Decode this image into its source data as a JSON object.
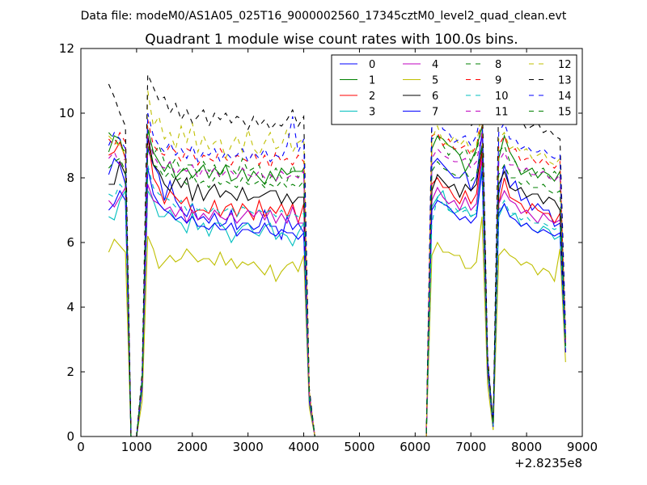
{
  "chart_data": {
    "type": "line",
    "suptitle": "Data file: modeM0/AS1A05_025T16_9000002560_17345cztM0_level2_quad_clean.evt",
    "title": "Quadrant 1 module wise count rates with 100.0s bins.",
    "xlabel": "",
    "ylabel": "",
    "offset_label": "+2.8235e8",
    "xlim": [
      0,
      9000
    ],
    "ylim": [
      0,
      12
    ],
    "xticks": [
      0,
      1000,
      2000,
      3000,
      4000,
      5000,
      6000,
      7000,
      8000,
      9000
    ],
    "yticks": [
      0,
      2,
      4,
      6,
      8,
      10,
      12
    ],
    "grid": false,
    "legend_position": "top-right",
    "legend_columns": 4,
    "x": [
      500,
      600,
      700,
      800,
      900,
      1000,
      1100,
      1200,
      1300,
      1400,
      1500,
      1600,
      1700,
      1800,
      1900,
      2000,
      2100,
      2200,
      2300,
      2400,
      2500,
      2600,
      2700,
      2800,
      2900,
      3000,
      3100,
      3200,
      3300,
      3400,
      3500,
      3600,
      3700,
      3800,
      3900,
      4000,
      4100,
      4200,
      4300,
      4400,
      6200,
      6300,
      6400,
      6500,
      6600,
      6700,
      6800,
      6900,
      7000,
      7100,
      7200,
      7300,
      7400,
      7500,
      7600,
      7700,
      7800,
      7900,
      8000,
      8100,
      8200,
      8300,
      8400,
      8500,
      8600,
      8700
    ],
    "series": [
      {
        "name": "0",
        "color": "#0000ff",
        "dash": "solid",
        "values": [
          8.1,
          8.6,
          8.4,
          7.8,
          0,
          0,
          1.6,
          8.9,
          8.4,
          8.1,
          7.3,
          7.9,
          7.3,
          7.0,
          6.8,
          7.2,
          6.7,
          6.8,
          6.6,
          6.9,
          6.5,
          6.6,
          7.0,
          6.4,
          6.6,
          6.6,
          6.4,
          6.5,
          7.0,
          6.5,
          6.5,
          6.1,
          6.8,
          6.4,
          6.6,
          6.3,
          1.2,
          0,
          0,
          0,
          0,
          8.4,
          8.6,
          8.4,
          8.2,
          8.0,
          8.0,
          8.2,
          7.6,
          8.0,
          9.4,
          2.2,
          0.4,
          7.5,
          8.4,
          7.7,
          7.9,
          7.3,
          7.4,
          7.0,
          7.2,
          7.0,
          7.0,
          6.5,
          6.6,
          2.8
        ]
      },
      {
        "name": "1",
        "color": "#008000",
        "dash": "solid",
        "values": [
          8.8,
          9.3,
          9.2,
          8.6,
          0,
          0,
          1.7,
          9.5,
          8.8,
          8.5,
          8.2,
          8.5,
          8.0,
          8.2,
          8.3,
          8.0,
          8.2,
          8.4,
          8.0,
          8.3,
          8.1,
          8.4,
          7.9,
          8.0,
          8.3,
          7.9,
          8.2,
          8.0,
          7.8,
          8.2,
          7.9,
          8.3,
          8.1,
          8.2,
          8.2,
          8.2,
          1.3,
          0,
          0,
          0,
          0,
          8.9,
          9.3,
          9.2,
          9.0,
          8.9,
          8.7,
          8.2,
          8.5,
          8.9,
          9.6,
          2.2,
          0.4,
          8.6,
          9.3,
          8.8,
          8.5,
          8.1,
          8.2,
          8.3,
          8.0,
          8.2,
          8.1,
          7.9,
          8.2,
          3.0
        ]
      },
      {
        "name": "2",
        "color": "#ff0000",
        "dash": "solid",
        "values": [
          8.7,
          8.8,
          9.1,
          8.6,
          0,
          0,
          1.6,
          9.3,
          8.0,
          7.7,
          7.2,
          7.6,
          7.4,
          7.2,
          7.4,
          6.9,
          7.0,
          7.0,
          6.9,
          7.3,
          6.8,
          7.1,
          7.2,
          6.8,
          7.2,
          7.0,
          6.7,
          7.3,
          6.8,
          7.1,
          6.9,
          7.2,
          6.8,
          7.2,
          6.6,
          7.2,
          1.3,
          0,
          0,
          0,
          0,
          7.8,
          8.0,
          7.7,
          7.7,
          7.4,
          7.2,
          7.6,
          7.2,
          7.5,
          8.8,
          2.2,
          0.4,
          7.2,
          8.0,
          7.4,
          7.3,
          7.2,
          6.9,
          7.2,
          7.0,
          6.9,
          6.9,
          6.6,
          6.9,
          2.6
        ]
      },
      {
        "name": "3",
        "color": "#00bfbf",
        "dash": "solid",
        "values": [
          6.8,
          6.7,
          7.3,
          7.6,
          0,
          0,
          1.5,
          7.6,
          7.3,
          6.8,
          6.8,
          7.0,
          6.7,
          6.6,
          6.3,
          6.9,
          6.4,
          6.6,
          6.2,
          6.6,
          6.6,
          6.4,
          6.0,
          6.3,
          6.5,
          6.6,
          6.3,
          6.2,
          6.5,
          6.6,
          6.1,
          6.3,
          6.2,
          5.9,
          6.3,
          6.6,
          1.1,
          0,
          0,
          0,
          0,
          7.1,
          7.4,
          7.6,
          7.0,
          6.9,
          7.0,
          7.1,
          6.8,
          6.9,
          8.5,
          2.0,
          0.3,
          6.8,
          7.2,
          6.8,
          6.9,
          6.5,
          6.6,
          6.4,
          6.3,
          6.5,
          6.4,
          6.1,
          6.2,
          2.6
        ]
      },
      {
        "name": "4",
        "color": "#bf00bf",
        "dash": "solid",
        "values": [
          7.3,
          7.1,
          7.4,
          7.7,
          0,
          0,
          1.5,
          7.8,
          7.3,
          7.2,
          7.0,
          7.1,
          6.8,
          7.1,
          6.6,
          7.0,
          6.7,
          6.9,
          6.7,
          7.0,
          6.8,
          6.7,
          6.9,
          6.6,
          6.8,
          7.0,
          6.8,
          7.0,
          6.7,
          7.0,
          6.6,
          6.9,
          6.6,
          7.1,
          6.6,
          6.6,
          1.1,
          0,
          0,
          0,
          0,
          7.3,
          7.7,
          7.4,
          7.2,
          7.3,
          7.0,
          7.4,
          7.0,
          7.2,
          8.6,
          2.1,
          0.3,
          7.2,
          7.6,
          7.3,
          7.2,
          6.9,
          7.0,
          6.8,
          6.6,
          6.9,
          6.7,
          6.6,
          6.7,
          2.6
        ]
      },
      {
        "name": "5",
        "color": "#bfbf00",
        "dash": "solid",
        "values": [
          5.7,
          6.1,
          5.9,
          5.7,
          0,
          0,
          1.1,
          6.2,
          5.8,
          5.2,
          5.4,
          5.6,
          5.4,
          5.5,
          5.8,
          5.6,
          5.4,
          5.5,
          5.5,
          5.3,
          5.7,
          5.3,
          5.5,
          5.2,
          5.4,
          5.3,
          5.4,
          5.2,
          5.0,
          5.3,
          4.8,
          5.1,
          5.3,
          5.4,
          5.1,
          5.6,
          0.9,
          0,
          0,
          0,
          0,
          5.6,
          6.0,
          5.7,
          5.7,
          5.6,
          5.6,
          5.2,
          5.2,
          5.4,
          6.8,
          1.6,
          0.2,
          5.6,
          5.8,
          5.6,
          5.5,
          5.3,
          5.4,
          5.3,
          5.0,
          5.2,
          5.1,
          4.8,
          5.8,
          2.3
        ]
      },
      {
        "name": "6",
        "color": "#000000",
        "dash": "solid",
        "values": [
          7.8,
          7.8,
          8.5,
          8.1,
          0,
          0,
          1.6,
          9.3,
          8.4,
          8.2,
          7.8,
          7.6,
          8.0,
          7.7,
          8.0,
          7.3,
          7.8,
          7.3,
          7.6,
          7.8,
          7.4,
          7.6,
          7.5,
          7.3,
          7.7,
          7.3,
          7.4,
          7.4,
          7.5,
          7.6,
          7.6,
          7.2,
          7.5,
          7.2,
          7.4,
          7.4,
          1.3,
          0,
          0,
          0,
          0,
          7.6,
          8.1,
          7.9,
          7.7,
          7.8,
          7.4,
          7.8,
          7.6,
          7.8,
          9.0,
          2.2,
          0.4,
          7.8,
          8.2,
          7.7,
          7.6,
          7.7,
          7.4,
          7.5,
          7.5,
          7.2,
          7.4,
          7.3,
          7.0,
          2.8
        ]
      },
      {
        "name": "7",
        "color": "#0000ff",
        "dash": "solid",
        "values": [
          7.0,
          7.2,
          7.6,
          7.3,
          0,
          0,
          1.5,
          8.3,
          7.5,
          7.2,
          7.0,
          6.9,
          6.7,
          6.8,
          6.6,
          6.8,
          6.5,
          6.5,
          6.4,
          6.6,
          6.4,
          6.4,
          6.6,
          6.2,
          6.4,
          6.4,
          6.3,
          6.3,
          6.6,
          6.3,
          6.2,
          6.4,
          6.3,
          6.3,
          6.1,
          6.3,
          1.1,
          0,
          0,
          0,
          0,
          7.0,
          7.3,
          7.2,
          7.1,
          6.9,
          6.7,
          6.8,
          6.6,
          6.8,
          8.2,
          2.0,
          0.3,
          6.9,
          7.2,
          6.8,
          6.7,
          6.5,
          6.6,
          6.4,
          6.3,
          6.4,
          6.3,
          6.2,
          6.3,
          2.6
        ]
      },
      {
        "name": "8",
        "color": "#008000",
        "dash": "dashed",
        "values": [
          9.4,
          9.2,
          9.0,
          8.8,
          0,
          0,
          1.8,
          9.6,
          8.7,
          9.0,
          8.5,
          8.3,
          8.6,
          8.2,
          8.4,
          8.4,
          8.1,
          8.5,
          8.2,
          8.4,
          8.0,
          8.4,
          8.3,
          8.1,
          8.6,
          8.2,
          8.3,
          8.4,
          7.8,
          8.0,
          8.3,
          8.0,
          7.9,
          8.4,
          8.0,
          8.3,
          1.4,
          0,
          0,
          0,
          0,
          9.2,
          9.3,
          9.0,
          8.7,
          8.9,
          8.7,
          8.9,
          8.5,
          8.8,
          9.6,
          2.3,
          0.4,
          8.8,
          9.0,
          8.5,
          8.5,
          8.1,
          8.3,
          8.0,
          8.2,
          8.3,
          8.0,
          8.2,
          8.0,
          3.0
        ]
      },
      {
        "name": "9",
        "color": "#ff0000",
        "dash": "dashed",
        "values": [
          9.2,
          9.0,
          9.4,
          9.1,
          0,
          0,
          1.8,
          9.8,
          9.0,
          8.8,
          8.7,
          9.0,
          8.8,
          8.5,
          8.9,
          8.8,
          8.4,
          8.7,
          8.6,
          8.5,
          8.9,
          8.6,
          8.4,
          8.7,
          8.6,
          8.5,
          8.8,
          8.4,
          8.7,
          8.3,
          8.8,
          8.5,
          8.6,
          8.4,
          8.7,
          8.5,
          1.4,
          0,
          0,
          0,
          0,
          9.3,
          9.4,
          9.0,
          9.2,
          8.9,
          8.9,
          9.0,
          8.7,
          9.0,
          9.8,
          2.3,
          0.4,
          9.0,
          9.3,
          8.8,
          8.9,
          8.5,
          8.6,
          8.6,
          8.4,
          8.6,
          8.4,
          8.3,
          8.5,
          3.0
        ]
      },
      {
        "name": "10",
        "color": "#00bfbf",
        "dash": "dashed",
        "values": [
          7.5,
          7.4,
          7.8,
          7.6,
          0,
          0,
          1.6,
          8.4,
          7.7,
          7.5,
          7.4,
          7.3,
          7.1,
          7.3,
          7.0,
          7.2,
          7.0,
          7.1,
          6.9,
          7.1,
          6.9,
          7.0,
          7.1,
          6.8,
          7.1,
          7.0,
          6.9,
          7.0,
          6.9,
          7.0,
          6.8,
          7.0,
          6.8,
          6.9,
          6.8,
          6.9,
          1.2,
          0,
          0,
          0,
          0,
          6.6,
          7.4,
          7.2,
          7.0,
          7.1,
          6.9,
          7.0,
          6.8,
          7.0,
          8.4,
          2.1,
          0.3,
          7.0,
          7.3,
          6.9,
          6.9,
          6.7,
          6.8,
          6.6,
          6.6,
          6.6,
          6.5,
          6.4,
          6.5,
          2.7
        ]
      },
      {
        "name": "11",
        "color": "#bf00bf",
        "dash": "dashed",
        "values": [
          8.6,
          8.8,
          8.4,
          8.6,
          0,
          0,
          1.7,
          9.3,
          8.7,
          8.4,
          8.3,
          8.5,
          8.1,
          8.3,
          8.2,
          8.4,
          8.0,
          8.3,
          8.1,
          8.3,
          8.0,
          8.2,
          8.2,
          8.0,
          8.3,
          8.1,
          8.0,
          8.2,
          8.0,
          8.1,
          7.9,
          8.2,
          8.0,
          8.1,
          8.0,
          8.2,
          1.3,
          0,
          0,
          0,
          0,
          8.6,
          8.9,
          8.7,
          8.6,
          8.5,
          8.5,
          8.6,
          8.3,
          8.5,
          9.4,
          2.2,
          0.4,
          8.5,
          8.8,
          8.4,
          8.4,
          8.2,
          8.3,
          8.1,
          8.1,
          8.2,
          8.0,
          7.9,
          8.1,
          2.9
        ]
      },
      {
        "name": "12",
        "color": "#bfbf00",
        "dash": "dashed",
        "values": [
          9.3,
          9.1,
          9.0,
          8.7,
          0,
          0,
          1.9,
          10.7,
          9.6,
          9.9,
          9.2,
          9.4,
          8.9,
          9.6,
          9.1,
          9.7,
          8.8,
          9.3,
          8.9,
          9.1,
          9.2,
          8.6,
          9.0,
          9.3,
          8.8,
          9.5,
          8.9,
          8.7,
          9.1,
          9.4,
          8.9,
          9.0,
          9.5,
          8.8,
          9.1,
          9.2,
          1.4,
          0,
          0,
          0,
          0,
          9.2,
          9.6,
          9.1,
          9.0,
          9.3,
          9.0,
          9.2,
          8.8,
          9.0,
          10.1,
          2.4,
          0.4,
          9.2,
          9.4,
          8.9,
          9.0,
          8.8,
          8.9,
          8.6,
          8.7,
          8.8,
          8.5,
          8.4,
          8.6,
          3.1
        ]
      },
      {
        "name": "13",
        "color": "#000000",
        "dash": "dashed",
        "values": [
          10.9,
          10.5,
          10.0,
          9.6,
          0,
          0,
          2.0,
          11.2,
          10.8,
          10.4,
          10.5,
          10.0,
          10.3,
          9.8,
          10.1,
          9.7,
          9.9,
          10.1,
          9.6,
          10.0,
          9.8,
          10.0,
          9.7,
          9.9,
          9.8,
          9.5,
          9.9,
          9.6,
          9.8,
          9.5,
          9.7,
          9.6,
          9.8,
          10.1,
          9.6,
          9.9,
          1.5,
          0,
          0,
          0,
          0,
          10.0,
          10.3,
          9.9,
          10.1,
          9.7,
          9.9,
          10.0,
          9.6,
          9.8,
          10.8,
          2.5,
          0.4,
          10.5,
          10.1,
          9.9,
          9.7,
          9.8,
          9.5,
          9.6,
          9.7,
          9.4,
          9.5,
          9.3,
          9.2,
          3.3
        ]
      },
      {
        "name": "14",
        "color": "#0000ff",
        "dash": "dashed",
        "values": [
          9.0,
          9.4,
          9.2,
          8.9,
          0,
          0,
          1.8,
          10.0,
          9.3,
          9.0,
          8.8,
          9.1,
          8.7,
          8.9,
          8.6,
          9.0,
          8.5,
          8.8,
          8.7,
          8.9,
          8.5,
          8.8,
          8.6,
          8.7,
          8.9,
          8.5,
          8.8,
          8.6,
          8.9,
          8.5,
          8.7,
          8.6,
          9.0,
          9.9,
          8.8,
          9.2,
          1.4,
          0,
          0,
          0,
          0,
          9.6,
          9.9,
          9.5,
          9.4,
          9.1,
          9.2,
          9.3,
          9.0,
          9.3,
          10.2,
          2.4,
          0.4,
          9.4,
          9.7,
          9.2,
          9.2,
          8.9,
          9.0,
          8.8,
          8.8,
          8.9,
          8.7,
          8.6,
          8.7,
          3.1
        ]
      },
      {
        "name": "15",
        "color": "#008000",
        "dash": "dashed",
        "values": [
          8.3,
          8.5,
          8.6,
          8.2,
          0,
          0,
          1.7,
          9.0,
          8.4,
          8.3,
          8.0,
          8.2,
          7.9,
          8.0,
          7.8,
          8.1,
          7.8,
          7.9,
          7.7,
          8.0,
          7.8,
          7.9,
          7.8,
          7.7,
          8.0,
          7.8,
          7.8,
          7.9,
          7.7,
          7.8,
          7.7,
          7.9,
          7.7,
          7.8,
          7.7,
          7.9,
          1.3,
          0,
          0,
          0,
          0,
          8.2,
          8.5,
          8.3,
          8.2,
          8.1,
          8.0,
          8.2,
          7.9,
          8.1,
          9.0,
          2.2,
          0.4,
          8.1,
          8.4,
          8.0,
          8.0,
          7.8,
          7.9,
          7.7,
          7.7,
          7.8,
          7.6,
          7.5,
          7.6,
          2.8
        ]
      }
    ]
  }
}
